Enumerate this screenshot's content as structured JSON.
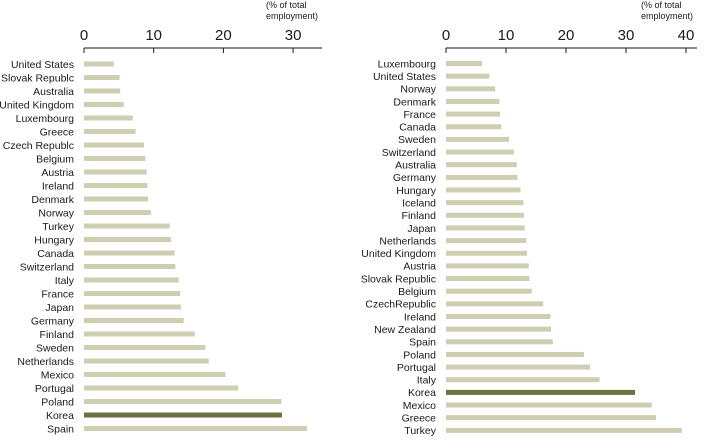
{
  "chart_data": [
    {
      "type": "bar",
      "orientation": "horizontal",
      "unit_label": [
        "(% of total",
        "employment)"
      ],
      "xlim": [
        0,
        35
      ],
      "ticks": [
        0,
        10,
        20,
        30
      ],
      "grid": false,
      "highlight_color": "#6b7141",
      "bar_color": "#cfcdb2",
      "highlight": "Korea",
      "categories": [
        "United States",
        "Slovak Republc",
        "Australia",
        "United Kingdom",
        "Luxembourg",
        "Greece",
        "Czech Republc",
        "Belgium",
        "Austria",
        "Ireland",
        "Denmark",
        "Norway",
        "Turkey",
        "Hungary",
        "Canada",
        "Switzerland",
        "Italy",
        "France",
        "Japan",
        "Germany",
        "Finland",
        "Sweden",
        "Netherlands",
        "Mexico",
        "Portugal",
        "Poland",
        "Korea",
        "Spain"
      ],
      "values": [
        4.3,
        5.1,
        5.2,
        5.7,
        7.0,
        7.4,
        8.6,
        8.8,
        9.0,
        9.1,
        9.2,
        9.6,
        12.3,
        12.5,
        13.0,
        13.1,
        13.6,
        13.8,
        13.9,
        14.3,
        15.9,
        17.4,
        17.9,
        20.3,
        22.1,
        28.3,
        28.4,
        32.0
      ]
    },
    {
      "type": "bar",
      "orientation": "horizontal",
      "unit_label": [
        "(% of total",
        "employment)"
      ],
      "xlim": [
        0,
        41
      ],
      "ticks": [
        0,
        10,
        20,
        30,
        40
      ],
      "grid": false,
      "highlight_color": "#6b7141",
      "bar_color": "#cfcdb2",
      "highlight": "Korea",
      "categories": [
        "Luxembourg",
        "United States",
        "Norway",
        "Denmark",
        "France",
        "Canada",
        "Sweden",
        "Switzerland",
        "Australia",
        "Germany",
        "Hungary",
        "Iceland",
        "Finland",
        "Japan",
        "Netherlands",
        "United Kingdom",
        "Austria",
        "Slovak Republic",
        "Belgium",
        "CzechRepublic",
        "Ireland",
        "New Zealand",
        "Spain",
        "Poland",
        "Portugal",
        "Italy",
        "Korea",
        "Mexico",
        "Greece",
        "Turkey"
      ],
      "values": [
        6.0,
        7.2,
        8.2,
        8.9,
        9.0,
        9.2,
        10.5,
        11.3,
        11.8,
        11.9,
        12.4,
        12.9,
        13.0,
        13.1,
        13.4,
        13.5,
        13.8,
        13.9,
        14.3,
        16.2,
        17.4,
        17.5,
        17.8,
        23.0,
        24.0,
        25.6,
        31.5,
        34.3,
        35.0,
        39.3
      ]
    }
  ]
}
